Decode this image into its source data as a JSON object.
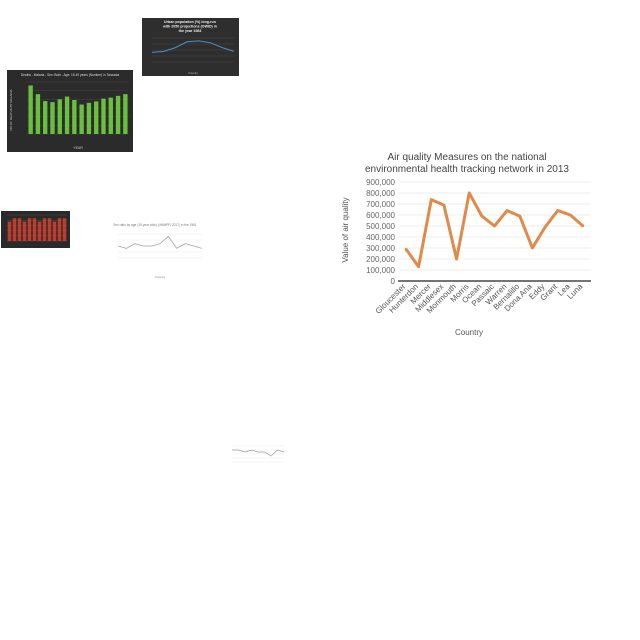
{
  "thumbnails": {
    "deaths": {
      "title": "Deaths - Malaria - Sex: Both - Age: 15-49 years (Number) in Tanzania",
      "xlabel": "YEAR",
      "ylabel": "NO OF DEATHS BY MALARIA",
      "bar_color": "#6abf3f",
      "values": [
        1400,
        1150,
        950,
        920,
        1000,
        1080,
        980,
        850,
        900,
        940,
        1020,
        1050,
        1100,
        1150
      ]
    },
    "urban": {
      "title": "Urban population (%) long-run with 2050 projections (OWID) in the year 1984",
      "xlabel": "Country",
      "line_color": "#4a90c8",
      "values": [
        20,
        22,
        30,
        42,
        44,
        40,
        30,
        22
      ]
    },
    "red": {
      "bar_color": "#c0392b",
      "values": [
        6,
        7,
        7,
        6,
        7,
        7,
        6,
        7,
        7,
        6,
        7,
        7
      ]
    },
    "light1": {
      "title": "Sex ratio by age (15 year olds) (UNWPP, 2017) in the 1961",
      "xlabel": "Country",
      "values": [
        5,
        4,
        6,
        5,
        5,
        6,
        9,
        4,
        6,
        5,
        4
      ]
    },
    "light2": {
      "values": [
        6,
        6,
        5,
        6,
        5,
        5,
        3,
        6,
        5
      ]
    }
  },
  "chart_data": {
    "type": "line",
    "title": "Air quality Measures on the national environmental health tracking network in 2013",
    "title_lines": [
      "Air quality Measures on the national",
      "environmental health tracking network in 2013"
    ],
    "xlabel": "Country",
    "ylabel": "Value of air quality",
    "categories": [
      "Gloucester",
      "Hunterdon",
      "Mercer",
      "Middlesex",
      "Monmouth",
      "Morris",
      "Ocean",
      "Passaic",
      "Warren",
      "Bernalillo",
      "Dona Ana",
      "Eddy",
      "Grant",
      "Lea",
      "Luna"
    ],
    "values": [
      290000,
      130000,
      740000,
      690000,
      200000,
      800000,
      590000,
      500000,
      640000,
      590000,
      300000,
      490000,
      640000,
      600000,
      500000
    ],
    "ylim": [
      0,
      900000
    ],
    "yticks": [
      0,
      100000,
      200000,
      300000,
      400000,
      500000,
      600000,
      700000,
      800000,
      900000
    ],
    "ytick_labels": [
      "0",
      "100,000",
      "200,000",
      "300,000",
      "400,000",
      "500,000",
      "600,000",
      "700,000",
      "800,000",
      "900,000"
    ],
    "grid": true,
    "line_color": "#e08a4a"
  }
}
